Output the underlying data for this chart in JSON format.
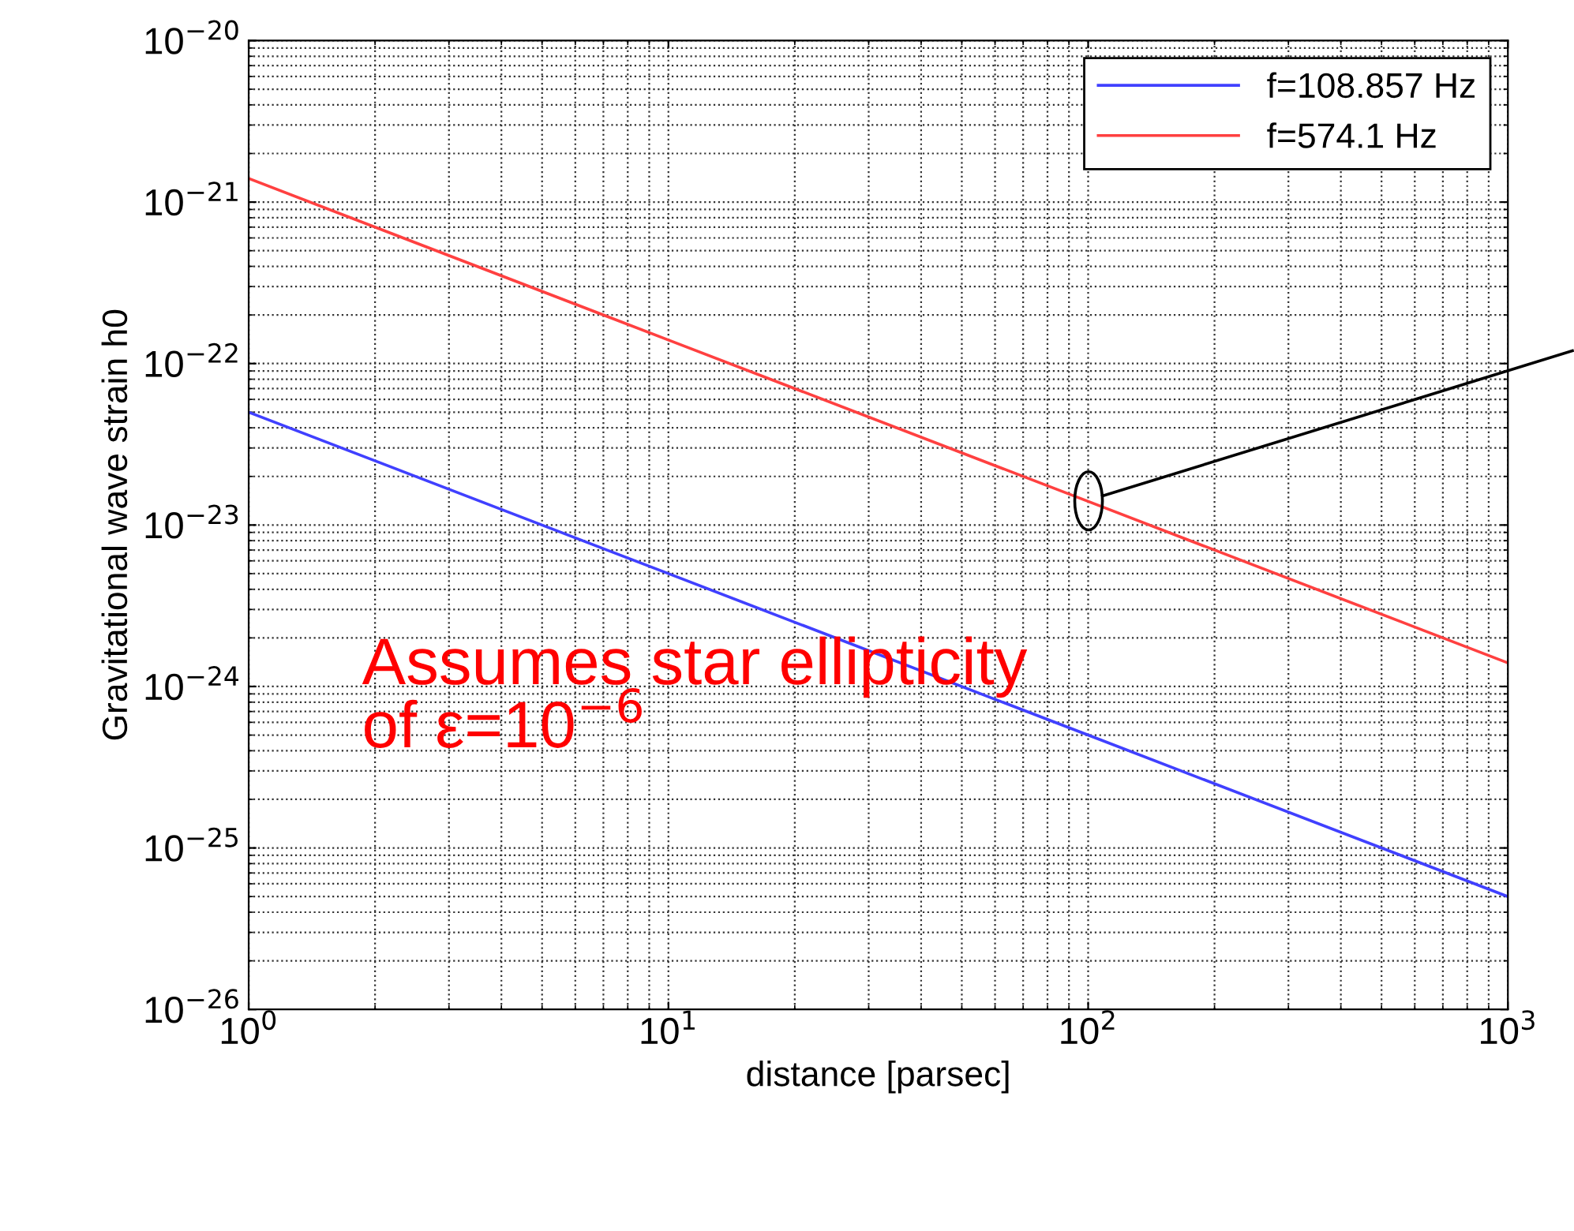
{
  "chart_data": {
    "type": "line",
    "xlabel": "distance [parsec]",
    "ylabel": "Gravitational wave strain h0",
    "x": [
      1,
      10,
      100,
      1000
    ],
    "series": [
      {
        "name": "f=108.857 Hz",
        "color": "#4040ff",
        "values": [
          5e-23,
          5e-24,
          5e-25,
          5e-26
        ]
      },
      {
        "name": "f=574.1 Hz",
        "color": "#ff4040",
        "values": [
          1.4e-21,
          1.4e-22,
          1.4e-23,
          1.4e-24
        ]
      }
    ],
    "log": "xy",
    "xlim": [
      1,
      1000
    ],
    "xticks": [
      {
        "value": 1,
        "label": "10$^{0}$"
      },
      {
        "value": 10,
        "label": "10$^{1}$"
      },
      {
        "value": 100,
        "label": "10$^{2}$"
      },
      {
        "value": 1000,
        "label": "10$^{3}$"
      }
    ],
    "ylim": [
      1e-26,
      1e-20
    ],
    "yticks": [
      {
        "value": 1e-26,
        "label": "10$^{−26}$"
      },
      {
        "value": 1e-25,
        "label": "10$^{−25}$"
      },
      {
        "value": 1e-24,
        "label": "10$^{−24}$"
      },
      {
        "value": 1e-23,
        "label": "10$^{−23}$"
      },
      {
        "value": 1e-22,
        "label": "10$^{−22}$"
      },
      {
        "value": 1e-21,
        "label": "10$^{−21}$"
      },
      {
        "value": 1e-20,
        "label": "10$^{−20}$"
      }
    ],
    "grid": true,
    "legend": "top right",
    "marker": "none",
    "line_style": "solid",
    "annotations": [
      "Assumes star ellipticity\nof ε=10$^{−6}$"
    ]
  }
}
